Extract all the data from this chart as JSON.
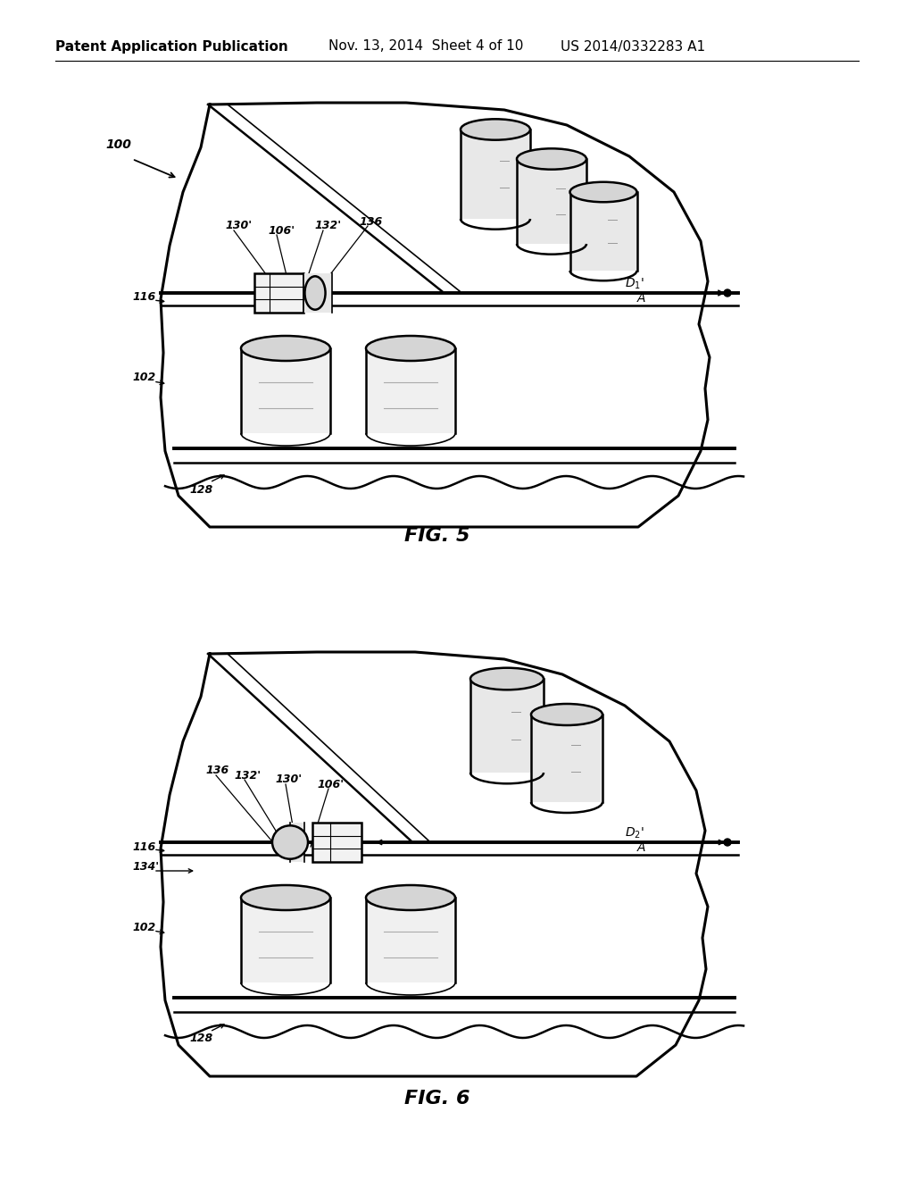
{
  "background_color": "#ffffff",
  "line_color": "#000000",
  "header_left": "Patent Application Publication",
  "header_mid": "Nov. 13, 2014  Sheet 4 of 10",
  "header_right": "US 2014/0332283 A1",
  "fig5_title": "FIG. 5",
  "fig6_title": "FIG. 6",
  "lw_outer": 2.2,
  "lw_thick": 2.8,
  "lw_main": 1.8,
  "lw_thin": 1.2,
  "lw_hair": 0.8,
  "gray1": "#e8e8e8",
  "gray2": "#d5d5d5",
  "gray3": "#c0c0c0",
  "gray4": "#b0b0b0",
  "white": "#ffffff"
}
